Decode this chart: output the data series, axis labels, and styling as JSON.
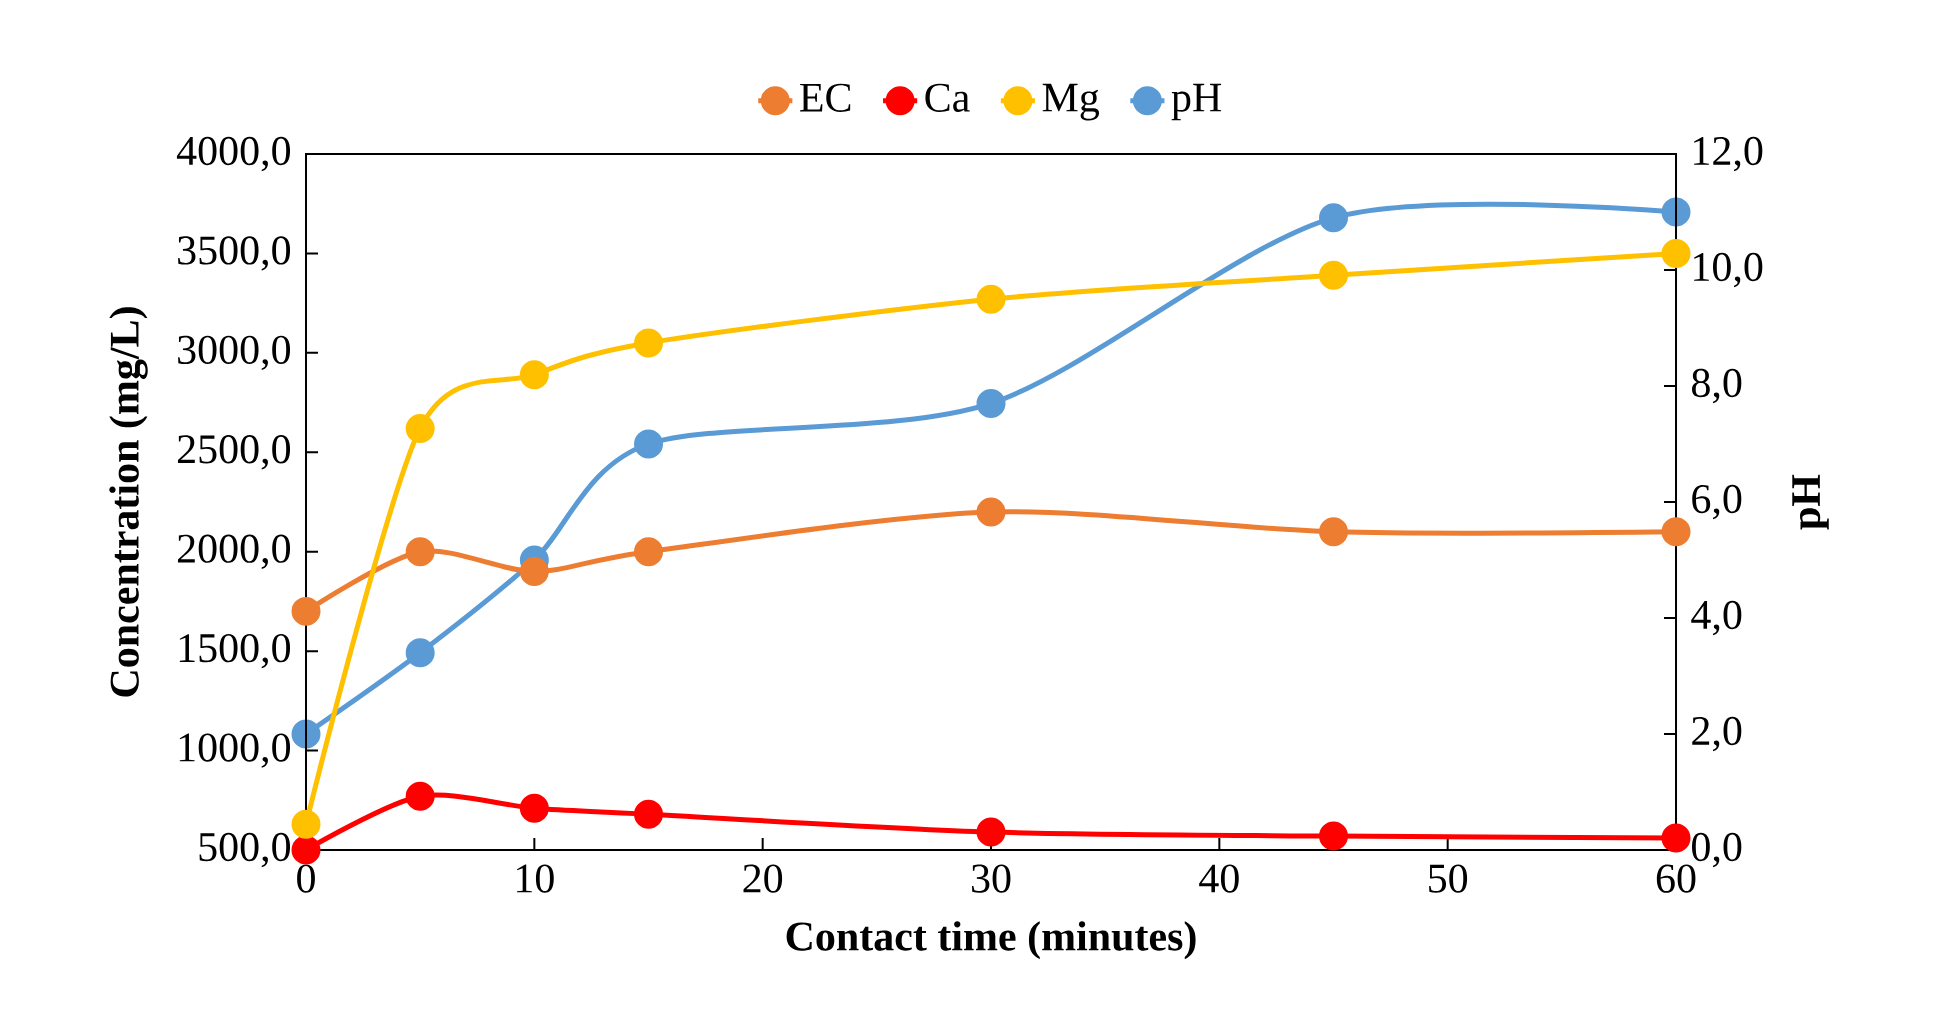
{
  "chart_data": {
    "type": "line",
    "xlabel": "Contact time (minutes)",
    "ylabel": "Concentration (mg/L)",
    "y2label": "pH",
    "x": [
      0,
      5,
      10,
      15,
      30,
      45,
      60
    ],
    "series": [
      {
        "name": "EC",
        "color": "#ed7d31",
        "values": [
          1700,
          2000,
          1900,
          2000,
          2200,
          2100,
          2100
        ]
      },
      {
        "name": "Ca",
        "color": "#ff0000",
        "values": [
          500,
          770,
          710,
          680,
          590,
          570,
          560
        ]
      },
      {
        "name": "Mg",
        "color": "#ffc000",
        "values": [
          630,
          2620,
          2890,
          3050,
          3270,
          3390,
          3500
        ]
      },
      {
        "name": "pH",
        "color": "#5b9bd5",
        "axis": "y2",
        "values": [
          2.0,
          3.4,
          5.0,
          7.0,
          7.7,
          10.9,
          11.0
        ]
      }
    ],
    "xlim": [
      0,
      60
    ],
    "xticks": [
      0,
      10,
      20,
      30,
      40,
      50,
      60
    ],
    "ylim": [
      500,
      4000
    ],
    "yticks": [
      {
        "value": 500,
        "label": "500,0"
      },
      {
        "value": 1000,
        "label": "1000,0"
      },
      {
        "value": 1500,
        "label": "1500,0"
      },
      {
        "value": 2000,
        "label": "2000,0"
      },
      {
        "value": 2500,
        "label": "2500,0"
      },
      {
        "value": 3000,
        "label": "3000,0"
      },
      {
        "value": 3500,
        "label": "3500,0"
      },
      {
        "value": 4000,
        "label": "4000,0"
      }
    ],
    "y2lim": [
      0,
      12
    ],
    "y2ticks": [
      {
        "value": 0,
        "label": "0,0"
      },
      {
        "value": 2,
        "label": "2,0"
      },
      {
        "value": 4,
        "label": "4,0"
      },
      {
        "value": 6,
        "label": "6,0"
      },
      {
        "value": 8,
        "label": "8,0"
      },
      {
        "value": 10,
        "label": "10,0"
      },
      {
        "value": 12,
        "label": "12,0"
      }
    ],
    "legend": "top",
    "marker": "circle",
    "line_style": "solid"
  }
}
